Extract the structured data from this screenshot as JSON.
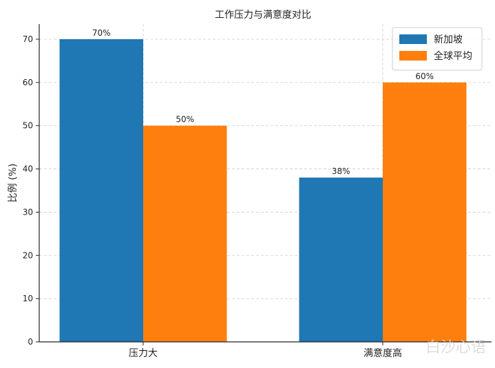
{
  "chart_data": {
    "type": "bar",
    "title": "工作压力与满意度对比",
    "xlabel": "",
    "ylabel": "比例 (%)",
    "categories": [
      "压力大",
      "满意度高"
    ],
    "series": [
      {
        "name": "新加坡",
        "values": [
          70,
          38
        ],
        "labels": [
          "70%",
          "38%"
        ],
        "color": "#1f77b4"
      },
      {
        "name": "全球平均",
        "values": [
          50,
          60
        ],
        "labels": [
          "50%",
          "60%"
        ],
        "color": "#ff7f0e"
      }
    ],
    "ylim": [
      0,
      73.5
    ],
    "yticks": [
      0,
      10,
      20,
      30,
      40,
      50,
      60,
      70
    ],
    "grid": true,
    "legend_position": "top-right"
  },
  "watermark": "白沙心语"
}
